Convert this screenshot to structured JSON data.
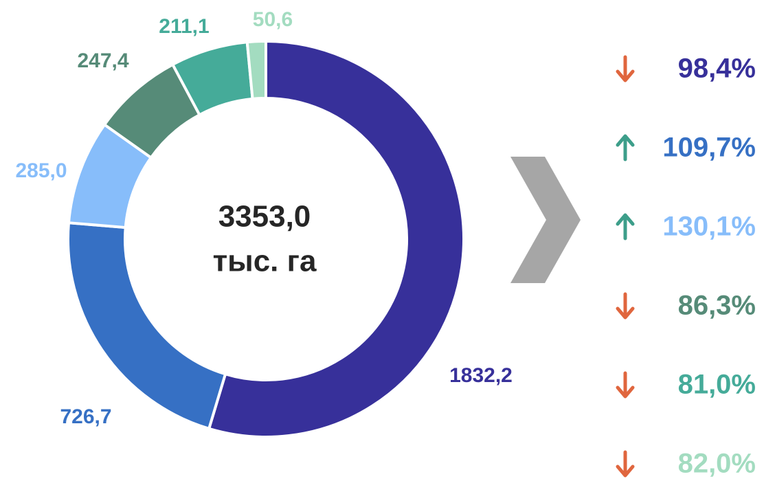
{
  "chart_data": {
    "type": "donut",
    "values": [
      1832.2,
      726.7,
      285.0,
      247.4,
      211.1,
      50.6
    ],
    "value_labels": [
      "1832,2",
      "726,7",
      "285,0",
      "247,4",
      "211,1",
      "50,6"
    ],
    "colors": [
      "#37309a",
      "#3670c4",
      "#87bdfa",
      "#568b78",
      "#45ab99",
      "#a3dcc0"
    ],
    "center_value": "3353,0",
    "center_unit": "тыс. га",
    "change_labels": [
      "98,4%",
      "109,7%",
      "130,1%",
      "86,3%",
      "81,0%",
      "82,0%"
    ],
    "change_directions": [
      "down",
      "up",
      "up",
      "down",
      "down",
      "down"
    ],
    "arrow_colors": {
      "down": "#e0663e",
      "up": "#3d9e8a"
    }
  }
}
